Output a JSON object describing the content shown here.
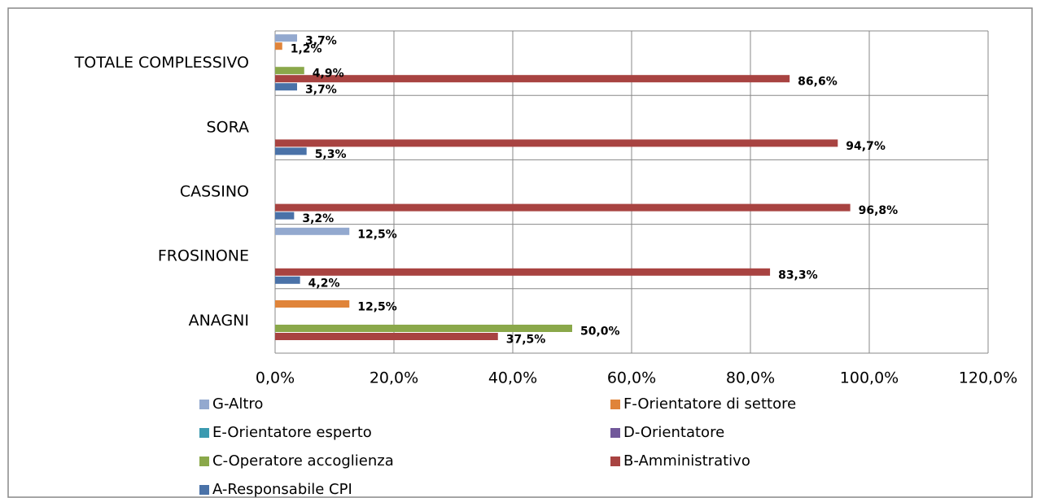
{
  "chart_data": {
    "type": "hbar",
    "categories": [
      "ANAGNI",
      "FROSINONE",
      "CASSINO",
      "SORA",
      "TOTALE COMPLESSIVO"
    ],
    "series": [
      {
        "name": "A-Responsabile CPI",
        "color": "#4a72a8",
        "values": [
          null,
          4.2,
          3.2,
          5.3,
          3.7
        ],
        "value_labels": [
          null,
          "4,2%",
          "3,2%",
          "5,3%",
          "3,7%"
        ]
      },
      {
        "name": "B-Amministrativo",
        "color": "#a84341",
        "values": [
          37.5,
          83.3,
          96.8,
          94.7,
          86.6
        ],
        "value_labels": [
          "37,5%",
          "83,3%",
          "96,8%",
          "94,7%",
          "86,6%"
        ]
      },
      {
        "name": "C-Operatore accoglienza",
        "color": "#8aa84a",
        "values": [
          50.0,
          null,
          null,
          null,
          4.9
        ],
        "value_labels": [
          "50,0%",
          null,
          null,
          null,
          "4,9%"
        ]
      },
      {
        "name": "D-Orientatore",
        "color": "#71589a",
        "values": [
          null,
          null,
          null,
          null,
          null
        ],
        "value_labels": [
          null,
          null,
          null,
          null,
          null
        ]
      },
      {
        "name": "E-Orientatore esperto",
        "color": "#3b9ab0",
        "values": [
          null,
          null,
          null,
          null,
          null
        ],
        "value_labels": [
          null,
          null,
          null,
          null,
          null
        ]
      },
      {
        "name": "F-Orientatore di settore",
        "color": "#e0843a",
        "values": [
          12.5,
          null,
          null,
          null,
          1.2
        ],
        "value_labels": [
          "12,5%",
          null,
          null,
          null,
          "1,2%"
        ]
      },
      {
        "name": "G-Altro",
        "color": "#93a9cf",
        "values": [
          null,
          12.5,
          null,
          null,
          3.7
        ],
        "value_labels": [
          null,
          "12,5%",
          null,
          null,
          "3,7%"
        ]
      }
    ],
    "xlim": [
      0,
      120
    ],
    "xticks": [
      {
        "value": 0,
        "label": "0,0%"
      },
      {
        "value": 20,
        "label": "20,0%"
      },
      {
        "value": 40,
        "label": "40,0%"
      },
      {
        "value": 60,
        "label": "60,0%"
      },
      {
        "value": 80,
        "label": "80,0%"
      },
      {
        "value": 100,
        "label": "100,0%"
      },
      {
        "value": 120,
        "label": "120,0%"
      }
    ],
    "grid": true
  }
}
